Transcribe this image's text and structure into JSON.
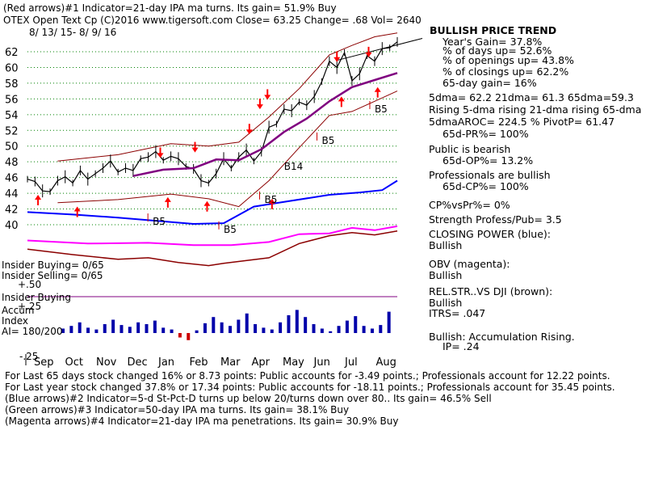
{
  "header": {
    "line1": "(Red arrows)#1 Indicator=21-day IPA ma turns.  Its gain= 51.9% Buy",
    "ticker_line": "OTEX   Open Text Cp  (C)2016 www.tigersoft.com      Close=   63.25  Change= .68 Vol= 2640",
    "date_range": "8/ 13/ 15-  8/ 9/ 16"
  },
  "price_axis": {
    "ticks": [
      "62",
      "60",
      "58",
      "56",
      "54",
      "52",
      "50",
      "48",
      "46",
      "44",
      "42",
      "40"
    ]
  },
  "months": [
    "Sep",
    "Oct",
    "Nov",
    "Dec",
    "Jan",
    "Feb",
    "Mar",
    "Apr",
    "May",
    "Jun",
    "Jul",
    "Aug"
  ],
  "labels": {
    "insider_buying": "Insider Buying= 0/65",
    "insider_selling": "Insider Selling= 0/65",
    "plus50": "+.50",
    "insider_buying2": "Insider Buying",
    "plus25": "+.25",
    "accum": "Accum",
    "index": "Index",
    "ai": "AI= 180/200",
    "minus25": "-.25"
  },
  "annotations": {
    "b5": "B5",
    "b14": "B14"
  },
  "panel": {
    "title": "BULLISH PRICE TREND",
    "lines": [
      "Year's Gain= 37.8%",
      "% of days up= 52.6%",
      "% of openings up= 43.8%",
      "% of closings up= 62.2%",
      "65-day gain= 16%"
    ],
    "dma": "5dma= 62.2 21dma= 61.3 65dma=59.3",
    "rising": "Rising 5-dma rising 21-dma rising 65-dma",
    "aroc": "5dmaAROC= 224.5 %  PivotP= 61.47",
    "pr": "65d-PR%= 100%",
    "public": "Public is bearish",
    "op": "65d-OP%= 13.2%",
    "pros": "Professionals are bullish",
    "cp": "65d-CP%= 100%",
    "cpvspr": "CP%vsPr%=  0%",
    "strength": "Strength Profess/Pub= 3.5",
    "closing_power": "CLOSING POWER (blue):",
    "closing_power_v": "Bullish",
    "obv": "OBV (magenta):",
    "obv_v": "Bullish",
    "relstr": "REL.STR..VS DJI (brown):",
    "relstr_v": "Bullish",
    "itrs": "ITRS= .047",
    "accum": "Bullish: Accumulation Rising.",
    "ip": "IP=  .24"
  },
  "footer": [
    "For Last 65 days stock changed  16% or  8.73 points:  Public accounts for -3.49 points.;  Professionals account for  12.22 points.",
    "For Last year stock changed  37.8% or  17.34 points:  Public accounts for -18.11 points.;  Professionals account for  35.45 points.",
    "(Blue arrows)#2 Indicator=5-d St-Pct-D turns up below 20/turns down over 80..  Its gain= 46.5% Sell",
    "(Green arrows)#3 Indicator=50-day IPA ma turns.  Its gain= 38.1% Buy",
    "(Magenta arrows)#4 Indicator=21-day IPA ma penetrations.  Its gain= 30.9% Buy"
  ],
  "colors": {
    "price": "#000000",
    "bands": "#8b0000",
    "ma65": "#800080",
    "grid": "#008000",
    "closing_power": "#0000ff",
    "obv": "#ff00ff",
    "relstr": "#8b0000",
    "accum": "#0000aa",
    "accum_neg": "#cc0000",
    "arrow": "#ff0000"
  },
  "chart_data": {
    "type": "line",
    "ylim": [
      39,
      64
    ],
    "price_points": [
      [
        0,
        45.8
      ],
      [
        5,
        45.5
      ],
      [
        10,
        44.3
      ],
      [
        15,
        44.2
      ],
      [
        20,
        45.6
      ],
      [
        25,
        46.1
      ],
      [
        30,
        45.3
      ],
      [
        35,
        46.9
      ],
      [
        40,
        45.8
      ],
      [
        45,
        46.5
      ],
      [
        50,
        47.2
      ],
      [
        55,
        48.1
      ],
      [
        60,
        46.7
      ],
      [
        65,
        47.2
      ],
      [
        70,
        46.9
      ],
      [
        75,
        48.4
      ],
      [
        80,
        48.6
      ],
      [
        85,
        49.3
      ],
      [
        90,
        48.2
      ],
      [
        95,
        48.7
      ],
      [
        100,
        48.4
      ],
      [
        105,
        47.4
      ],
      [
        110,
        47.1
      ],
      [
        115,
        45.6
      ],
      [
        120,
        45.3
      ],
      [
        125,
        46.5
      ],
      [
        130,
        48.4
      ],
      [
        135,
        47.2
      ],
      [
        140,
        48.6
      ],
      [
        145,
        49.5
      ],
      [
        150,
        48.1
      ],
      [
        155,
        49.3
      ],
      [
        160,
        52.4
      ],
      [
        165,
        52.8
      ],
      [
        170,
        54.7
      ],
      [
        175,
        54.5
      ],
      [
        180,
        55.6
      ],
      [
        185,
        55.2
      ],
      [
        190,
        56.3
      ],
      [
        195,
        58.2
      ],
      [
        200,
        60.8
      ],
      [
        205,
        60.0
      ],
      [
        210,
        61.9
      ],
      [
        215,
        58.3
      ],
      [
        220,
        59.2
      ],
      [
        225,
        61.5
      ],
      [
        230,
        60.8
      ],
      [
        235,
        62.4
      ],
      [
        240,
        62.5
      ],
      [
        245,
        63.25
      ]
    ],
    "ma65_points": [
      [
        70,
        46.2
      ],
      [
        90,
        47.0
      ],
      [
        110,
        47.2
      ],
      [
        125,
        48.3
      ],
      [
        140,
        48.2
      ],
      [
        155,
        49.6
      ],
      [
        170,
        51.8
      ],
      [
        185,
        53.5
      ],
      [
        200,
        55.7
      ],
      [
        215,
        57.5
      ],
      [
        230,
        58.4
      ],
      [
        245,
        59.3
      ]
    ],
    "upper_band": [
      [
        20,
        48.1
      ],
      [
        60,
        48.9
      ],
      [
        95,
        50.3
      ],
      [
        120,
        50.0
      ],
      [
        140,
        50.5
      ],
      [
        160,
        53.7
      ],
      [
        180,
        57.3
      ],
      [
        200,
        61.6
      ],
      [
        215,
        62.8
      ],
      [
        230,
        63.9
      ],
      [
        245,
        64.4
      ]
    ],
    "lower_band": [
      [
        20,
        42.8
      ],
      [
        60,
        43.2
      ],
      [
        95,
        43.9
      ],
      [
        120,
        43.3
      ],
      [
        140,
        42.3
      ],
      [
        160,
        45.6
      ],
      [
        180,
        49.8
      ],
      [
        200,
        53.9
      ],
      [
        215,
        54.4
      ],
      [
        230,
        55.7
      ],
      [
        245,
        57.0
      ]
    ],
    "closing_power_points": [
      [
        0,
        41.6
      ],
      [
        30,
        41.3
      ],
      [
        60,
        40.9
      ],
      [
        85,
        40.5
      ],
      [
        110,
        40.1
      ],
      [
        130,
        40.2
      ],
      [
        150,
        42.3
      ],
      [
        170,
        42.9
      ],
      [
        200,
        43.8
      ],
      [
        220,
        44.1
      ],
      [
        235,
        44.4
      ],
      [
        245,
        45.6
      ]
    ],
    "obv_points": [
      [
        0,
        38.0
      ],
      [
        40,
        37.6
      ],
      [
        80,
        37.7
      ],
      [
        110,
        37.4
      ],
      [
        135,
        37.4
      ],
      [
        160,
        37.8
      ],
      [
        180,
        38.8
      ],
      [
        200,
        38.9
      ],
      [
        215,
        39.6
      ],
      [
        230,
        39.3
      ],
      [
        245,
        39.8
      ]
    ],
    "relstr_points": [
      [
        0,
        36.9
      ],
      [
        30,
        36.2
      ],
      [
        60,
        35.6
      ],
      [
        80,
        35.8
      ],
      [
        100,
        35.2
      ],
      [
        120,
        34.8
      ],
      [
        130,
        35.1
      ],
      [
        160,
        35.8
      ],
      [
        180,
        37.6
      ],
      [
        200,
        38.6
      ],
      [
        215,
        39.0
      ],
      [
        230,
        38.7
      ],
      [
        245,
        39.2
      ]
    ],
    "accum_values": [
      0.05,
      0.08,
      0.12,
      0.06,
      0.04,
      0.1,
      0.15,
      0.09,
      0.07,
      0.12,
      0.1,
      0.14,
      0.06,
      0.04,
      -0.05,
      -0.08,
      0.03,
      0.11,
      0.18,
      0.12,
      0.08,
      0.15,
      0.22,
      0.1,
      0.06,
      0.04,
      0.12,
      0.2,
      0.26,
      0.18,
      0.1,
      0.05,
      0.02,
      0.08,
      0.14,
      0.19,
      0.08,
      0.05,
      0.09,
      0.24
    ],
    "red_arrows_up": [
      [
        7,
        43.5
      ],
      [
        33,
        42.0
      ],
      [
        93,
        43.2
      ],
      [
        119,
        42.7
      ],
      [
        162,
        43.0
      ],
      [
        208,
        56.0
      ],
      [
        232,
        57.2
      ]
    ],
    "red_arrows_down": [
      [
        88,
        48.8
      ],
      [
        111,
        49.5
      ],
      [
        147,
        51.8
      ],
      [
        154,
        55.0
      ],
      [
        159,
        56.2
      ],
      [
        205,
        61.0
      ],
      [
        226,
        61.6
      ]
    ],
    "b5_labels": [
      [
        83,
        40.2
      ],
      [
        130,
        39.2
      ],
      [
        157,
        43.0
      ],
      [
        195,
        50.5
      ],
      [
        230,
        54.5
      ]
    ],
    "b14_label": [
      170,
      47.0
    ]
  }
}
